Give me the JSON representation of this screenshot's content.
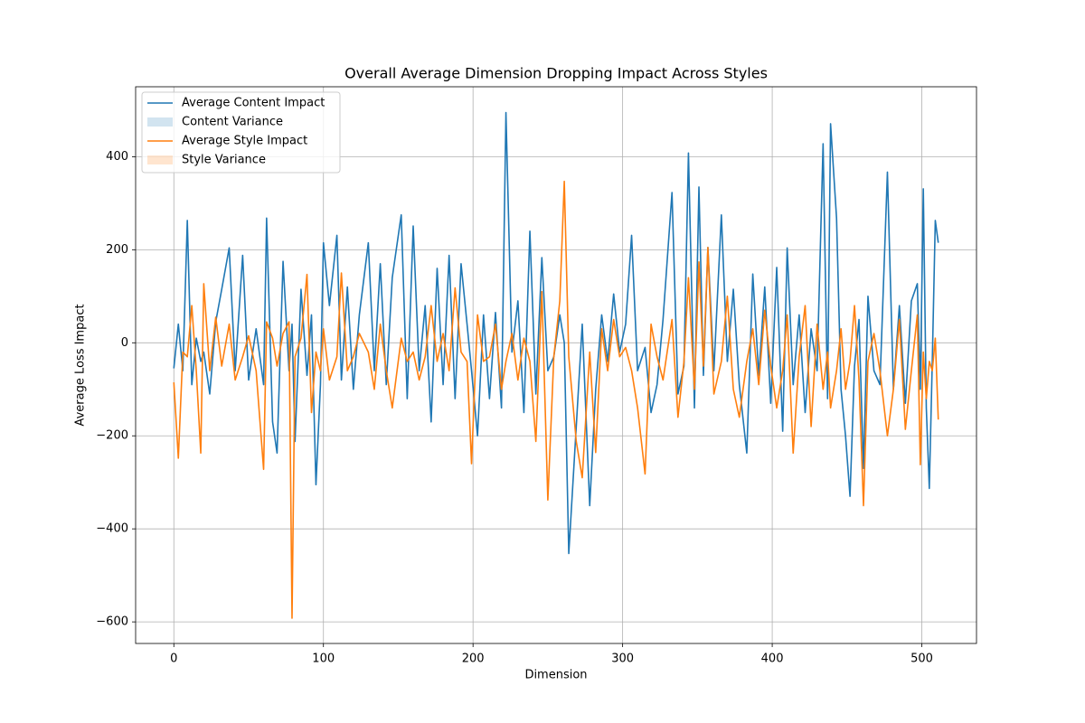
{
  "chart_data": {
    "type": "line",
    "title": "Overall Average Dimension Dropping Impact Across Styles",
    "xlabel": "Dimension",
    "ylabel": "Average Loss Impact",
    "x": [
      0,
      3,
      6,
      9,
      12,
      15,
      18,
      20,
      24,
      28,
      32,
      37,
      41,
      46,
      50,
      55,
      60,
      62,
      66,
      69,
      73,
      77,
      79,
      81,
      85,
      89,
      92,
      95,
      98,
      100,
      104,
      109,
      112,
      116,
      120,
      124,
      130,
      134,
      138,
      142,
      146,
      152,
      156,
      160,
      164,
      168,
      172,
      176,
      180,
      184,
      188,
      192,
      196,
      199,
      203,
      207,
      211,
      215,
      219,
      222,
      226,
      230,
      234,
      238,
      242,
      246,
      250,
      254,
      258,
      261,
      264,
      269,
      273,
      278,
      282,
      286,
      290,
      294,
      298,
      302,
      306,
      310,
      315,
      319,
      323,
      327,
      333,
      337,
      341,
      344,
      348,
      351,
      354,
      357,
      361,
      366,
      370,
      374,
      378,
      383,
      387,
      391,
      395,
      399,
      403,
      407,
      410,
      414,
      418,
      422,
      426,
      430,
      434,
      437,
      439,
      443,
      446,
      449,
      452,
      455,
      458,
      461,
      464,
      468,
      472,
      477,
      481,
      485,
      489,
      493,
      497,
      499,
      501,
      503,
      505,
      507,
      509,
      511
    ],
    "series": [
      {
        "name": "Average Content Impact",
        "color": "#1f77b4",
        "kind": "line",
        "values": [
          -55,
          40,
          -60,
          263,
          -90,
          10,
          -40,
          -20,
          -110,
          45,
          115,
          204,
          -60,
          188,
          -80,
          30,
          -90,
          268,
          -170,
          -237,
          175,
          -60,
          40,
          -212,
          115,
          -70,
          60,
          -305,
          -90,
          215,
          80,
          231,
          -80,
          120,
          -100,
          60,
          215,
          -60,
          170,
          -90,
          140,
          275,
          -120,
          251,
          -60,
          80,
          -170,
          160,
          -90,
          188,
          -120,
          170,
          40,
          -60,
          -200,
          60,
          -120,
          65,
          -140,
          495,
          -20,
          90,
          -150,
          240,
          -110,
          183,
          -60,
          -30,
          60,
          0,
          -453,
          -180,
          40,
          -350,
          -100,
          60,
          -40,
          105,
          -20,
          40,
          231,
          -60,
          -10,
          -150,
          -90,
          50,
          323,
          -110,
          -50,
          408,
          -140,
          335,
          -70,
          205,
          -60,
          275,
          -40,
          115,
          -90,
          -237,
          148,
          -70,
          120,
          -130,
          162,
          -190,
          204,
          -90,
          60,
          -150,
          30,
          -60,
          428,
          -120,
          471,
          268,
          -100,
          -200,
          -330,
          -50,
          50,
          -270,
          100,
          -60,
          -90,
          367,
          -100,
          80,
          -130,
          90,
          127,
          -100,
          331,
          -140,
          -313,
          -40,
          263,
          215
        ]
      },
      {
        "name": "Content Variance",
        "color": "#1f77b4",
        "kind": "band"
      },
      {
        "name": "Average Style Impact",
        "color": "#ff7f0e",
        "kind": "line",
        "values": [
          -85,
          -248,
          -20,
          -30,
          80,
          -60,
          -237,
          127,
          -60,
          55,
          -50,
          40,
          -80,
          -30,
          15,
          -60,
          -272,
          45,
          10,
          -50,
          20,
          45,
          -592,
          -30,
          10,
          147,
          -150,
          -20,
          -60,
          30,
          -80,
          -30,
          150,
          -60,
          -30,
          20,
          -20,
          -100,
          40,
          -60,
          -140,
          10,
          -40,
          -20,
          -80,
          -30,
          80,
          -40,
          20,
          -60,
          118,
          -20,
          -40,
          -260,
          60,
          -40,
          -30,
          40,
          -100,
          -40,
          20,
          -80,
          10,
          -40,
          -212,
          110,
          -338,
          -30,
          90,
          347,
          -30,
          -212,
          -290,
          -20,
          -236,
          30,
          -60,
          50,
          -30,
          -10,
          -60,
          -140,
          -282,
          40,
          -30,
          -80,
          50,
          -160,
          -40,
          140,
          -100,
          174,
          -50,
          205,
          -110,
          -40,
          100,
          -100,
          -160,
          -40,
          30,
          -90,
          70,
          -50,
          -140,
          -60,
          60,
          -237,
          -30,
          80,
          -180,
          40,
          -100,
          -20,
          -140,
          -60,
          30,
          -100,
          -40,
          80,
          -80,
          -350,
          -40,
          20,
          -60,
          -200,
          -100,
          50,
          -186,
          -60,
          60,
          -262,
          -20,
          -120,
          -40,
          -60,
          10,
          -165
        ]
      },
      {
        "name": "Style Variance",
        "color": "#ff7f0e",
        "kind": "band"
      }
    ],
    "xlim": [
      -25.55,
      536.55
    ],
    "ylim": [
      -646.4,
      550.4
    ],
    "xticks": [
      0,
      100,
      200,
      300,
      400,
      500
    ],
    "yticks": [
      {
        "value": -600,
        "label": "−600"
      },
      {
        "value": -400,
        "label": "−400"
      },
      {
        "value": -200,
        "label": "−200"
      },
      0,
      200,
      400
    ],
    "grid": true,
    "legend": "upper left"
  }
}
